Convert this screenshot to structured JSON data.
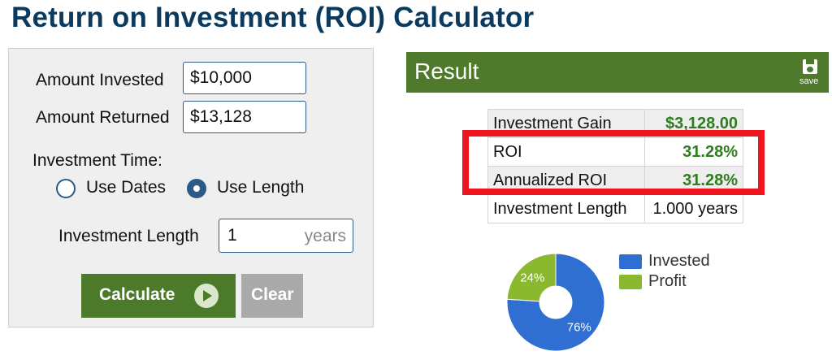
{
  "page": {
    "title": "Return on Investment (ROI) Calculator"
  },
  "form": {
    "amount_invested": {
      "label": "Amount Invested",
      "value": "$10,000"
    },
    "amount_returned": {
      "label": "Amount Returned",
      "value": "$13,128"
    },
    "investment_time": {
      "label": "Investment Time:",
      "options": [
        {
          "label": "Use Dates",
          "selected": false
        },
        {
          "label": "Use Length",
          "selected": true
        }
      ]
    },
    "investment_length": {
      "label": "Investment Length",
      "value": "1",
      "unit": "years"
    },
    "calculate_label": "Calculate",
    "clear_label": "Clear"
  },
  "result": {
    "title": "Result",
    "save_label": "save",
    "rows": [
      {
        "label": "Investment Gain",
        "value": "$3,128.00"
      },
      {
        "label": "ROI",
        "value": "31.28%"
      },
      {
        "label": "Annualized ROI",
        "value": "31.28%"
      },
      {
        "label": "Investment Length",
        "value": "1.000 years"
      }
    ]
  },
  "chart_data": {
    "type": "pie",
    "categories": [
      "Invested",
      "Profit"
    ],
    "values": [
      76,
      24
    ],
    "labels": [
      "76%",
      "24%"
    ],
    "colors": [
      "#2e6fd1",
      "#8ab82e"
    ],
    "legend": "right"
  },
  "colors": {
    "title": "#0b3a5f",
    "header_green": "#4f7a2b",
    "calculate_green": "#4b7a2a",
    "value_green": "#2e7d1e",
    "highlight_red": "#f0141e"
  }
}
